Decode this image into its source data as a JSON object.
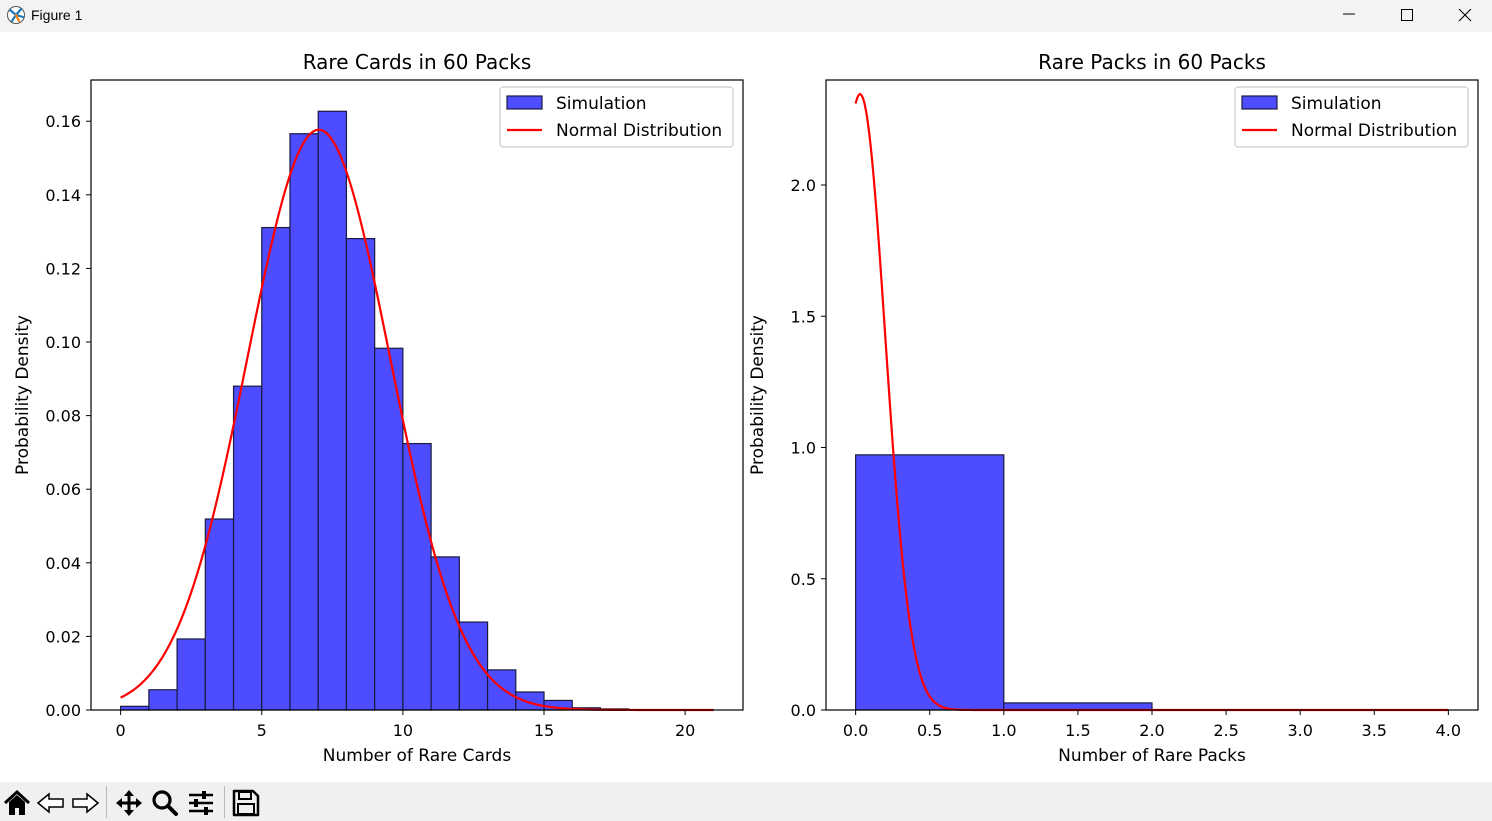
{
  "window": {
    "title": "Figure 1"
  },
  "toolbar": {
    "tools": [
      "home-icon",
      "back-icon",
      "forward-icon",
      "pan-icon",
      "zoom-icon",
      "configure-icon",
      "save-icon"
    ]
  },
  "chart_data": [
    {
      "type": "bar",
      "title": "Rare Cards in 60 Packs",
      "xlabel": "Number of Rare Cards",
      "ylabel": "Probability Density",
      "xlim": [
        -1.05,
        22.05
      ],
      "ylim": [
        0,
        0.1712
      ],
      "xticks": [
        0,
        5,
        10,
        15,
        20
      ],
      "xtick_labels": [
        "0",
        "5",
        "10",
        "15",
        "20"
      ],
      "yticks": [
        0,
        0.02,
        0.04,
        0.06,
        0.08,
        0.1,
        0.12,
        0.14,
        0.16
      ],
      "ytick_labels": [
        "0.00",
        "0.02",
        "0.04",
        "0.06",
        "0.08",
        "0.10",
        "0.12",
        "0.14",
        "0.16"
      ],
      "grid": false,
      "legend_placement": "top-right",
      "bar_color": "#4d4dff",
      "edge_color": "#1a1a40",
      "series": [
        {
          "name": "Simulation",
          "type": "histogram",
          "bin_edges": [
            0,
            1,
            2,
            3,
            4,
            5,
            6,
            7,
            8,
            9,
            10,
            11,
            12,
            13,
            14,
            15,
            16,
            17,
            18,
            19,
            20,
            21
          ],
          "values": [
            0.001,
            0.0055,
            0.0193,
            0.0519,
            0.088,
            0.1311,
            0.1566,
            0.1627,
            0.1281,
            0.0983,
            0.0724,
            0.0416,
            0.0239,
            0.0109,
            0.0049,
            0.0026,
            0.0006,
            0.0003,
            0.0001,
            5e-05,
            2e-05
          ]
        },
        {
          "name": "Normal Distribution",
          "type": "line",
          "color": "#ff0000",
          "mean": 7.02,
          "std": 2.53,
          "x_range": [
            0,
            21
          ]
        }
      ]
    },
    {
      "type": "bar",
      "title": "Rare Packs in 60 Packs",
      "xlabel": "Number of Rare Packs",
      "ylabel": "Probability Density",
      "xlim": [
        -0.2,
        4.2
      ],
      "ylim": [
        0,
        2.4
      ],
      "xticks": [
        0,
        0.5,
        1,
        1.5,
        2,
        2.5,
        3,
        3.5,
        4
      ],
      "xtick_labels": [
        "0.0",
        "0.5",
        "1.0",
        "1.5",
        "2.0",
        "2.5",
        "3.0",
        "3.5",
        "4.0"
      ],
      "yticks": [
        0,
        0.5,
        1.0,
        1.5,
        2.0
      ],
      "ytick_labels": [
        "0.0",
        "0.5",
        "1.0",
        "1.5",
        "2.0"
      ],
      "grid": false,
      "legend_placement": "top-right",
      "bar_color": "#4d4dff",
      "edge_color": "#1a1a40",
      "series": [
        {
          "name": "Simulation",
          "type": "histogram",
          "bin_edges": [
            0,
            1,
            2,
            3,
            4
          ],
          "values": [
            0.972,
            0.027,
            0.001,
            0.0002
          ]
        },
        {
          "name": "Normal Distribution",
          "type": "line",
          "color": "#ff0000",
          "mean": 0.03,
          "std": 0.17,
          "x_range": [
            0,
            4
          ]
        }
      ]
    }
  ]
}
